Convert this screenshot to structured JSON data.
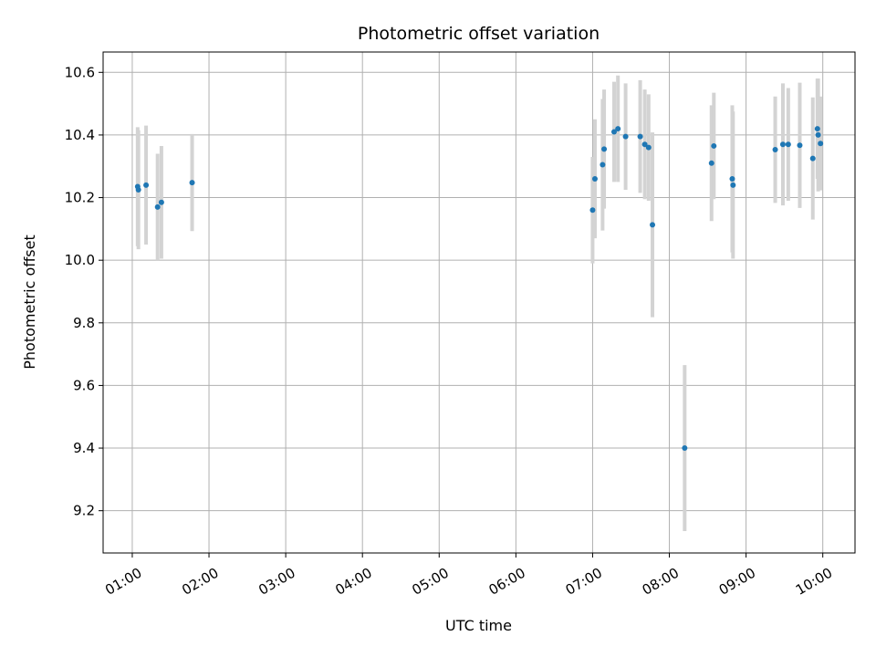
{
  "chart_data": {
    "type": "scatter",
    "title": "Photometric offset variation",
    "xlabel": "UTC time",
    "ylabel": "Photometric offset",
    "x_unit": "hours UTC",
    "xlim": [
      0.62,
      10.42
    ],
    "ylim": [
      9.065,
      10.665
    ],
    "xticks": [
      {
        "value": 1,
        "label": "01:00"
      },
      {
        "value": 2,
        "label": "02:00"
      },
      {
        "value": 3,
        "label": "03:00"
      },
      {
        "value": 4,
        "label": "04:00"
      },
      {
        "value": 5,
        "label": "05:00"
      },
      {
        "value": 6,
        "label": "06:00"
      },
      {
        "value": 7,
        "label": "07:00"
      },
      {
        "value": 8,
        "label": "08:00"
      },
      {
        "value": 9,
        "label": "09:00"
      },
      {
        "value": 10,
        "label": "10:00"
      }
    ],
    "yticks": [
      {
        "value": 9.2,
        "label": "9.2"
      },
      {
        "value": 9.4,
        "label": "9.4"
      },
      {
        "value": 9.6,
        "label": "9.6"
      },
      {
        "value": 9.8,
        "label": "9.8"
      },
      {
        "value": 10.0,
        "label": "10.0"
      },
      {
        "value": 10.2,
        "label": "10.2"
      },
      {
        "value": 10.4,
        "label": "10.4"
      },
      {
        "value": 10.6,
        "label": "10.6"
      }
    ],
    "grid": true,
    "marker_color": "#1f77b4",
    "errorbar_color": "#d3d3d3",
    "points": [
      {
        "x": 1.07,
        "y": 10.235,
        "err": 0.19
      },
      {
        "x": 1.08,
        "y": 10.225,
        "err": 0.19
      },
      {
        "x": 1.18,
        "y": 10.24,
        "err": 0.19
      },
      {
        "x": 1.33,
        "y": 10.17,
        "err": 0.17
      },
      {
        "x": 1.38,
        "y": 10.185,
        "err": 0.18
      },
      {
        "x": 1.78,
        "y": 10.248,
        "err": 0.155
      },
      {
        "x": 7.0,
        "y": 10.16,
        "err": 0.17
      },
      {
        "x": 7.03,
        "y": 10.26,
        "err": 0.19
      },
      {
        "x": 7.13,
        "y": 10.305,
        "err": 0.21
      },
      {
        "x": 7.15,
        "y": 10.355,
        "err": 0.19
      },
      {
        "x": 7.28,
        "y": 10.41,
        "err": 0.16
      },
      {
        "x": 7.33,
        "y": 10.42,
        "err": 0.17
      },
      {
        "x": 7.43,
        "y": 10.395,
        "err": 0.17
      },
      {
        "x": 7.62,
        "y": 10.395,
        "err": 0.18
      },
      {
        "x": 7.68,
        "y": 10.37,
        "err": 0.175
      },
      {
        "x": 7.73,
        "y": 10.36,
        "err": 0.17
      },
      {
        "x": 7.78,
        "y": 10.113,
        "err": 0.295
      },
      {
        "x": 8.2,
        "y": 9.4,
        "err": 0.265
      },
      {
        "x": 8.55,
        "y": 10.31,
        "err": 0.185
      },
      {
        "x": 8.58,
        "y": 10.365,
        "err": 0.17
      },
      {
        "x": 8.82,
        "y": 10.26,
        "err": 0.235
      },
      {
        "x": 8.83,
        "y": 10.24,
        "err": 0.235
      },
      {
        "x": 9.38,
        "y": 10.353,
        "err": 0.17
      },
      {
        "x": 9.48,
        "y": 10.37,
        "err": 0.195
      },
      {
        "x": 9.55,
        "y": 10.37,
        "err": 0.18
      },
      {
        "x": 9.7,
        "y": 10.367,
        "err": 0.2
      },
      {
        "x": 9.87,
        "y": 10.325,
        "err": 0.195
      },
      {
        "x": 9.93,
        "y": 10.42,
        "err": 0.16
      },
      {
        "x": 9.94,
        "y": 10.4,
        "err": 0.18
      },
      {
        "x": 9.97,
        "y": 10.373,
        "err": 0.15
      }
    ]
  }
}
